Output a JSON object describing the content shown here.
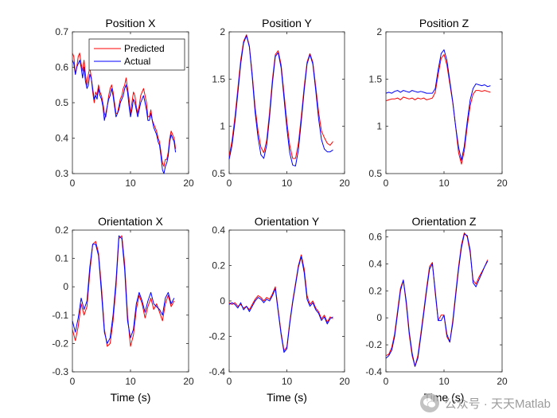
{
  "watermark": "公众号 · 天天Matlab",
  "colors": {
    "predicted": "#ff0000",
    "actual": "#0000ff"
  },
  "chart_data": [
    {
      "type": "line",
      "title": "Position X",
      "xlabel": "",
      "ylabel": "",
      "xlim": [
        0,
        20
      ],
      "ylim": [
        0.3,
        0.7
      ],
      "xticks": [
        0,
        10,
        20
      ],
      "yticks": [
        0.3,
        0.4,
        0.5,
        0.6,
        0.7
      ],
      "ytick_labels": [
        "0.3",
        "0.4",
        "0.5",
        "0.6",
        "0.7"
      ],
      "legend": {
        "position": "top-right",
        "entries": [
          "Predicted",
          "Actual"
        ]
      },
      "x": [
        0,
        0.25,
        0.5,
        0.75,
        1,
        1.25,
        1.5,
        1.75,
        2,
        2.25,
        2.5,
        2.75,
        3,
        3.25,
        3.5,
        3.75,
        4,
        4.25,
        4.5,
        4.75,
        5,
        5.25,
        5.5,
        5.75,
        6,
        6.25,
        6.5,
        6.75,
        7,
        7.25,
        7.5,
        7.75,
        8,
        8.25,
        8.5,
        8.75,
        9,
        9.25,
        9.5,
        9.75,
        10,
        10.25,
        10.5,
        10.75,
        11,
        11.25,
        11.5,
        11.75,
        12,
        12.25,
        12.5,
        12.75,
        13,
        13.25,
        13.5,
        13.75,
        14,
        14.25,
        14.5,
        14.75,
        15,
        15.25,
        15.5,
        15.75,
        16,
        16.25,
        16.5,
        16.75,
        17,
        17.25,
        17.5,
        17.75
      ],
      "series": [
        {
          "name": "Predicted",
          "color": "#ff0000",
          "values": [
            0.64,
            0.63,
            0.58,
            0.6,
            0.63,
            0.64,
            0.61,
            0.59,
            0.62,
            0.58,
            0.55,
            0.58,
            0.6,
            0.57,
            0.53,
            0.5,
            0.53,
            0.52,
            0.55,
            0.53,
            0.52,
            0.5,
            0.47,
            0.46,
            0.49,
            0.52,
            0.54,
            0.55,
            0.53,
            0.5,
            0.47,
            0.47,
            0.49,
            0.51,
            0.52,
            0.54,
            0.55,
            0.57,
            0.54,
            0.51,
            0.47,
            0.5,
            0.53,
            0.52,
            0.49,
            0.47,
            0.49,
            0.52,
            0.53,
            0.54,
            0.52,
            0.5,
            0.46,
            0.46,
            0.48,
            0.45,
            0.44,
            0.43,
            0.42,
            0.4,
            0.39,
            0.36,
            0.33,
            0.32,
            0.34,
            0.34,
            0.36,
            0.4,
            0.42,
            0.41,
            0.4,
            0.37
          ]
        },
        {
          "name": "Actual",
          "color": "#0000ff",
          "values": [
            0.62,
            0.61,
            0.58,
            0.6,
            0.61,
            0.62,
            0.6,
            0.57,
            0.6,
            0.56,
            0.54,
            0.55,
            0.58,
            0.57,
            0.54,
            0.51,
            0.52,
            0.51,
            0.54,
            0.52,
            0.51,
            0.49,
            0.45,
            0.47,
            0.49,
            0.51,
            0.52,
            0.54,
            0.52,
            0.49,
            0.46,
            0.47,
            0.48,
            0.5,
            0.51,
            0.52,
            0.54,
            0.55,
            0.53,
            0.49,
            0.46,
            0.48,
            0.51,
            0.5,
            0.48,
            0.46,
            0.48,
            0.5,
            0.51,
            0.52,
            0.5,
            0.48,
            0.45,
            0.45,
            0.47,
            0.45,
            0.43,
            0.42,
            0.41,
            0.39,
            0.38,
            0.35,
            0.31,
            0.3,
            0.32,
            0.33,
            0.35,
            0.39,
            0.41,
            0.4,
            0.39,
            0.36
          ]
        }
      ]
    },
    {
      "type": "line",
      "title": "Position Y",
      "xlabel": "",
      "ylabel": "",
      "xlim": [
        0,
        20
      ],
      "ylim": [
        0.5,
        2
      ],
      "xticks": [
        0,
        10,
        20
      ],
      "yticks": [
        0.5,
        1,
        1.5,
        2
      ],
      "ytick_labels": [
        "0.5",
        "1",
        "1.5",
        "2"
      ],
      "x": [
        0,
        0.5,
        1,
        1.5,
        2,
        2.5,
        3,
        3.5,
        4,
        4.5,
        5,
        5.5,
        6,
        6.5,
        7,
        7.5,
        8,
        8.5,
        9,
        9.5,
        10,
        10.5,
        11,
        11.5,
        12,
        12.5,
        13,
        13.5,
        14,
        14.5,
        15,
        15.5,
        16,
        16.5,
        17,
        17.5,
        18
      ],
      "series": [
        {
          "name": "Predicted",
          "color": "#ff0000",
          "values": [
            0.68,
            0.85,
            1.1,
            1.4,
            1.7,
            1.9,
            1.97,
            1.85,
            1.55,
            1.2,
            0.95,
            0.78,
            0.72,
            0.85,
            1.15,
            1.5,
            1.76,
            1.8,
            1.65,
            1.35,
            1.05,
            0.8,
            0.66,
            0.66,
            0.82,
            1.1,
            1.42,
            1.68,
            1.77,
            1.68,
            1.42,
            1.15,
            0.95,
            0.88,
            0.82,
            0.8,
            0.84
          ]
        },
        {
          "name": "Actual",
          "color": "#0000ff",
          "values": [
            0.65,
            0.8,
            1.05,
            1.35,
            1.66,
            1.88,
            1.96,
            1.84,
            1.52,
            1.15,
            0.88,
            0.7,
            0.66,
            0.8,
            1.1,
            1.46,
            1.74,
            1.78,
            1.62,
            1.3,
            0.98,
            0.72,
            0.59,
            0.58,
            0.75,
            1.05,
            1.38,
            1.66,
            1.76,
            1.66,
            1.38,
            1.08,
            0.86,
            0.76,
            0.73,
            0.73,
            0.75
          ]
        }
      ]
    },
    {
      "type": "line",
      "title": "Position Z",
      "xlabel": "",
      "ylabel": "",
      "xlim": [
        0,
        20
      ],
      "ylim": [
        0.5,
        2
      ],
      "xticks": [
        0,
        10,
        20
      ],
      "yticks": [
        0.5,
        1,
        1.5,
        2
      ],
      "ytick_labels": [
        "0.5",
        "1",
        "1.5",
        "2"
      ],
      "x": [
        0,
        0.5,
        1,
        1.5,
        2,
        2.5,
        3,
        3.5,
        4,
        4.5,
        5,
        5.5,
        6,
        6.5,
        7,
        7.5,
        8,
        8.5,
        9,
        9.5,
        10,
        10.5,
        11,
        11.5,
        12,
        12.5,
        13,
        13.5,
        14,
        14.5,
        15,
        15.5,
        16,
        16.5,
        17,
        17.5,
        18
      ],
      "series": [
        {
          "name": "Predicted",
          "color": "#ff0000",
          "values": [
            1.27,
            1.28,
            1.29,
            1.29,
            1.3,
            1.28,
            1.31,
            1.3,
            1.29,
            1.3,
            1.28,
            1.3,
            1.29,
            1.3,
            1.28,
            1.29,
            1.3,
            1.36,
            1.55,
            1.72,
            1.76,
            1.65,
            1.45,
            1.25,
            1.0,
            0.72,
            0.6,
            0.74,
            1.0,
            1.22,
            1.34,
            1.38,
            1.38,
            1.37,
            1.38,
            1.37,
            1.36
          ]
        },
        {
          "name": "Actual",
          "color": "#0000ff",
          "values": [
            1.35,
            1.36,
            1.35,
            1.37,
            1.38,
            1.36,
            1.38,
            1.37,
            1.36,
            1.38,
            1.37,
            1.36,
            1.37,
            1.36,
            1.35,
            1.35,
            1.35,
            1.4,
            1.6,
            1.77,
            1.81,
            1.7,
            1.48,
            1.26,
            1.0,
            0.78,
            0.64,
            0.79,
            1.05,
            1.28,
            1.4,
            1.45,
            1.44,
            1.43,
            1.44,
            1.42,
            1.43
          ]
        }
      ]
    },
    {
      "type": "line",
      "title": "Orientation X",
      "xlabel": "Time (s)",
      "ylabel": "",
      "xlim": [
        0,
        20
      ],
      "ylim": [
        -0.3,
        0.2
      ],
      "xticks": [
        0,
        10,
        20
      ],
      "yticks": [
        -0.3,
        -0.2,
        -0.1,
        0,
        0.1,
        0.2
      ],
      "ytick_labels": [
        "-0.3",
        "-0.2",
        "-0.1",
        "0",
        "0.1",
        "0.2"
      ],
      "x": [
        0,
        0.5,
        1,
        1.5,
        2,
        2.5,
        3,
        3.5,
        4,
        4.5,
        5,
        5.5,
        6,
        6.5,
        7,
        7.5,
        8,
        8.5,
        9,
        9.5,
        10,
        10.5,
        11,
        11.5,
        12,
        12.5,
        13,
        13.5,
        14,
        14.5,
        15,
        15.5,
        16,
        16.5,
        17,
        17.5
      ],
      "series": [
        {
          "name": "Predicted",
          "color": "#ff0000",
          "values": [
            -0.15,
            -0.19,
            -0.14,
            -0.06,
            -0.1,
            -0.07,
            0.05,
            0.15,
            0.16,
            0.12,
            0.0,
            -0.15,
            -0.21,
            -0.2,
            -0.12,
            0.0,
            0.17,
            0.18,
            0.08,
            -0.1,
            -0.21,
            -0.17,
            -0.08,
            -0.03,
            -0.06,
            -0.11,
            -0.07,
            -0.04,
            -0.08,
            -0.06,
            -0.09,
            -0.12,
            -0.06,
            -0.03,
            -0.07,
            -0.05
          ]
        },
        {
          "name": "Actual",
          "color": "#0000ff",
          "values": [
            -0.12,
            -0.16,
            -0.11,
            -0.04,
            -0.08,
            -0.05,
            0.07,
            0.15,
            0.15,
            0.11,
            -0.02,
            -0.16,
            -0.2,
            -0.18,
            -0.1,
            0.02,
            0.18,
            0.17,
            0.06,
            -0.12,
            -0.18,
            -0.15,
            -0.06,
            -0.02,
            -0.05,
            -0.09,
            -0.05,
            -0.02,
            -0.06,
            -0.07,
            -0.08,
            -0.1,
            -0.04,
            -0.02,
            -0.06,
            -0.04
          ]
        }
      ]
    },
    {
      "type": "line",
      "title": "Orientation Y",
      "xlabel": "Time (s)",
      "ylabel": "",
      "xlim": [
        0,
        20
      ],
      "ylim": [
        -0.4,
        0.4
      ],
      "xticks": [
        0,
        10,
        20
      ],
      "yticks": [
        -0.4,
        -0.2,
        0,
        0.2,
        0.4
      ],
      "ytick_labels": [
        "-0.4",
        "-0.2",
        "0",
        "0.2",
        "0.4"
      ],
      "x": [
        0,
        0.5,
        1,
        1.5,
        2,
        2.5,
        3,
        3.5,
        4,
        4.5,
        5,
        5.5,
        6,
        6.5,
        7,
        7.5,
        8,
        8.5,
        9,
        9.5,
        10,
        10.5,
        11,
        11.5,
        12,
        12.5,
        13,
        13.5,
        14,
        14.5,
        15,
        15.5,
        16,
        16.5,
        17,
        17.5,
        18
      ],
      "series": [
        {
          "name": "Predicted",
          "color": "#ff0000",
          "values": [
            -0.01,
            -0.02,
            -0.01,
            -0.03,
            -0.02,
            -0.04,
            -0.03,
            -0.05,
            -0.02,
            0.01,
            0.03,
            0.02,
            0.0,
            0.02,
            0.01,
            0.04,
            0.08,
            -0.05,
            -0.18,
            -0.28,
            -0.26,
            -0.12,
            0.0,
            0.1,
            0.2,
            0.26,
            0.18,
            0.03,
            -0.02,
            0.0,
            -0.04,
            -0.06,
            -0.1,
            -0.08,
            -0.12,
            -0.09,
            -0.1
          ]
        },
        {
          "name": "Actual",
          "color": "#0000ff",
          "values": [
            -0.02,
            -0.01,
            -0.02,
            -0.04,
            -0.01,
            -0.05,
            -0.03,
            -0.06,
            -0.03,
            0.0,
            0.02,
            0.01,
            -0.01,
            0.01,
            0.0,
            0.03,
            0.07,
            -0.06,
            -0.19,
            -0.29,
            -0.27,
            -0.13,
            -0.01,
            0.09,
            0.19,
            0.25,
            0.16,
            0.01,
            -0.03,
            -0.01,
            -0.05,
            -0.07,
            -0.11,
            -0.09,
            -0.13,
            -0.1,
            -0.09
          ]
        }
      ]
    },
    {
      "type": "line",
      "title": "Orientation Z",
      "xlabel": "Time (s)",
      "ylabel": "",
      "xlim": [
        0,
        20
      ],
      "ylim": [
        -0.4,
        0.65
      ],
      "xticks": [
        0,
        10,
        20
      ],
      "yticks": [
        -0.4,
        -0.2,
        0,
        0.2,
        0.4,
        0.6
      ],
      "ytick_labels": [
        "-0.4",
        "-0.2",
        "0",
        "0.2",
        "0.4",
        "0.6"
      ],
      "x": [
        0,
        0.5,
        1,
        1.5,
        2,
        2.5,
        3,
        3.5,
        4,
        4.5,
        5,
        5.5,
        6,
        6.5,
        7,
        7.5,
        8,
        8.5,
        9,
        9.5,
        10,
        10.5,
        11,
        11.5,
        12,
        12.5,
        13,
        13.5,
        14,
        14.5,
        15,
        15.5,
        16,
        16.5,
        17,
        17.5
      ],
      "series": [
        {
          "name": "Predicted",
          "color": "#ff0000",
          "values": [
            -0.28,
            -0.27,
            -0.22,
            -0.12,
            0.05,
            0.22,
            0.28,
            0.1,
            -0.12,
            -0.28,
            -0.36,
            -0.28,
            -0.12,
            0.05,
            0.22,
            0.38,
            0.41,
            0.18,
            -0.02,
            0.02,
            0.02,
            -0.14,
            -0.18,
            -0.02,
            0.18,
            0.38,
            0.54,
            0.63,
            0.6,
            0.48,
            0.28,
            0.25,
            0.3,
            0.34,
            0.38,
            0.43
          ]
        },
        {
          "name": "Actual",
          "color": "#0000ff",
          "values": [
            -0.3,
            -0.28,
            -0.24,
            -0.14,
            0.03,
            0.2,
            0.28,
            0.12,
            -0.1,
            -0.26,
            -0.36,
            -0.3,
            -0.14,
            0.03,
            0.2,
            0.36,
            0.4,
            0.2,
            -0.02,
            -0.02,
            0.02,
            -0.12,
            -0.18,
            -0.04,
            0.16,
            0.36,
            0.52,
            0.62,
            0.61,
            0.5,
            0.26,
            0.23,
            0.28,
            0.33,
            0.38,
            0.42
          ]
        }
      ]
    }
  ]
}
